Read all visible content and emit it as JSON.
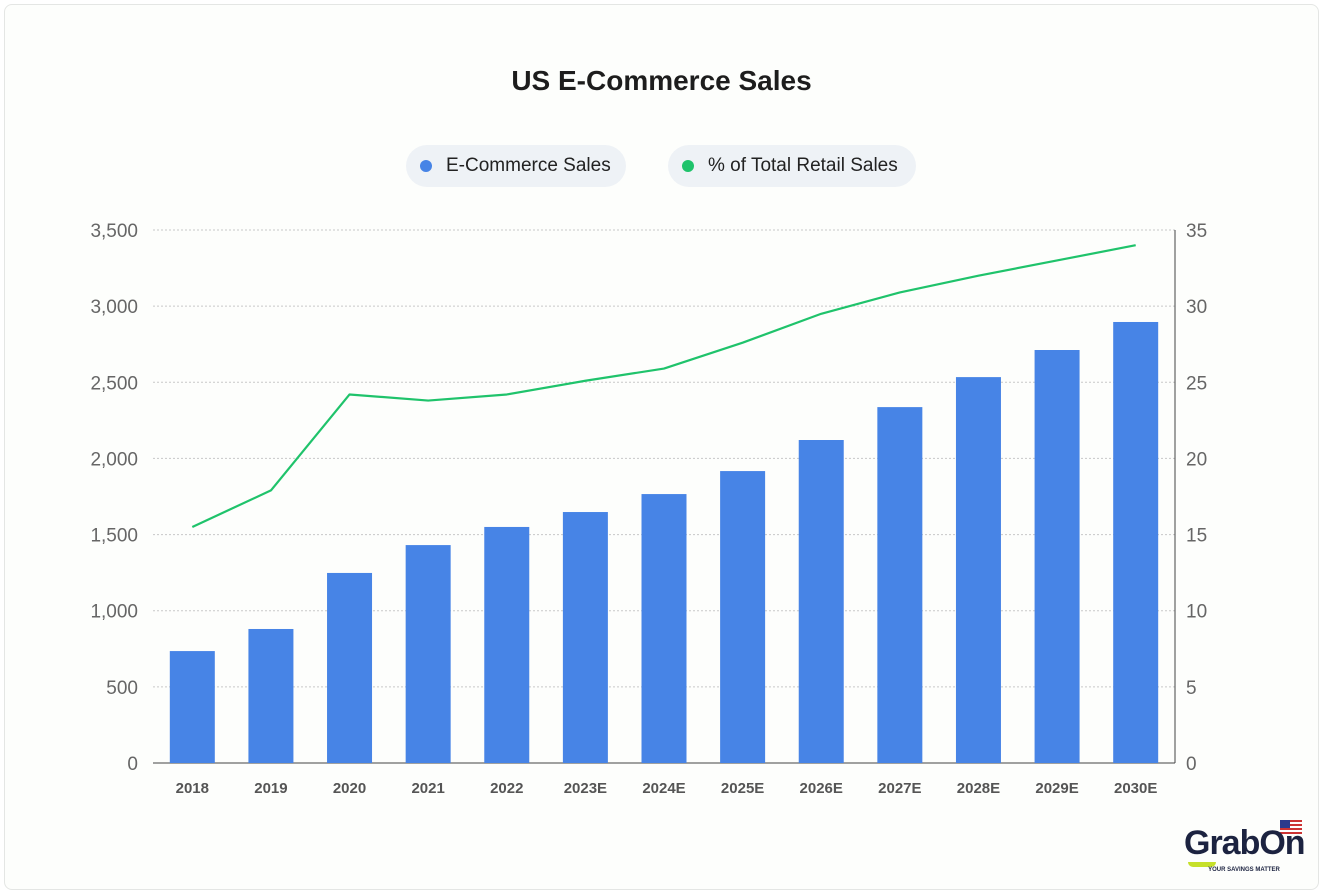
{
  "chart_data": {
    "type": "bar",
    "title": "US E-Commerce Sales",
    "categories": [
      "2018",
      "2019",
      "2020",
      "2021",
      "2022",
      "2023E",
      "2024E",
      "2025E",
      "2026E",
      "2027E",
      "2028E",
      "2029E",
      "2030E"
    ],
    "series": [
      {
        "name": "E-Commerce Sales",
        "type": "bar",
        "axis": "left",
        "color": "#4784e6",
        "values": [
          735,
          880,
          1248,
          1431,
          1550,
          1648,
          1766,
          1917,
          2121,
          2337,
          2534,
          2712,
          2896
        ]
      },
      {
        "name": "% of Total Retail Sales",
        "type": "line",
        "axis": "right",
        "color": "#1fc36b",
        "values": [
          15.5,
          17.9,
          24.2,
          23.8,
          24.2,
          25.1,
          25.9,
          27.6,
          29.5,
          30.9,
          32.0,
          33.0,
          34.0
        ]
      }
    ],
    "y_left": {
      "range": [
        0,
        3500
      ],
      "ticks": [
        "0",
        "500",
        "1,000",
        "1,500",
        "2,000",
        "2,500",
        "3,000",
        "3,500"
      ]
    },
    "y_right": {
      "range": [
        0,
        35
      ],
      "ticks": [
        "0",
        "5",
        "10",
        "15",
        "20",
        "25",
        "30",
        "35"
      ]
    },
    "grid": true,
    "legend_position": "top-center"
  },
  "logo": {
    "name": "GrabOn",
    "tagline": "YOUR SAVINGS MATTER"
  }
}
